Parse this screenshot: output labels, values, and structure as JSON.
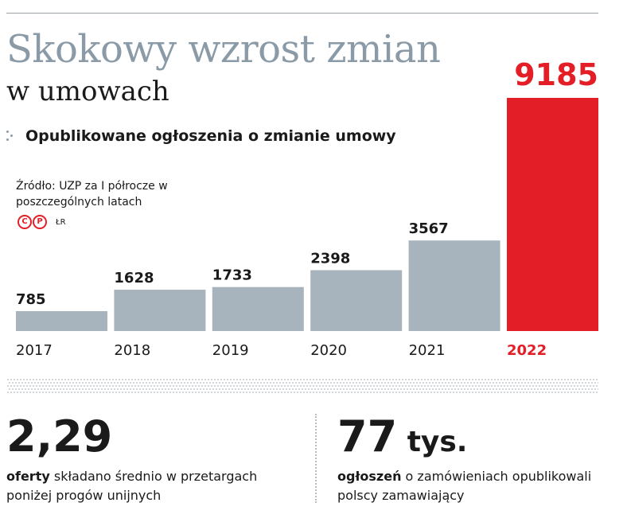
{
  "title": "Skokowy wzrost zmian",
  "subtitle": "w umowach",
  "chart_heading": "Opublikowane ogłoszenia o zmianie umowy",
  "source": "Źródło: UZP za I półrocze w poszczególnych latach",
  "copyright_marks": [
    "C",
    "P"
  ],
  "author": "ŁR",
  "colors": {
    "bar": "#a8b4bd",
    "highlight": "#e41e26",
    "title": "#8a9aa6"
  },
  "chart_data": {
    "type": "bar",
    "title": "Opublikowane ogłoszenia o zmianie umowy",
    "categories": [
      "2017",
      "2018",
      "2019",
      "2020",
      "2021",
      "2022"
    ],
    "values": [
      785,
      1628,
      1733,
      2398,
      3567,
      9185
    ],
    "highlight_category": "2022",
    "xlabel": "",
    "ylabel": "",
    "ylim": [
      0,
      9185
    ],
    "grid": false,
    "legend": "none"
  },
  "stats": [
    {
      "value": "2,29",
      "unit": "",
      "desc_bold": "oferty",
      "desc_rest": " składano średnio w przetargach poniżej progów unijnych"
    },
    {
      "value": "77",
      "unit": " tys.",
      "desc_bold": "ogłoszeń",
      "desc_rest": " o zamówieniach opublikowali polscy zamawiający"
    }
  ]
}
